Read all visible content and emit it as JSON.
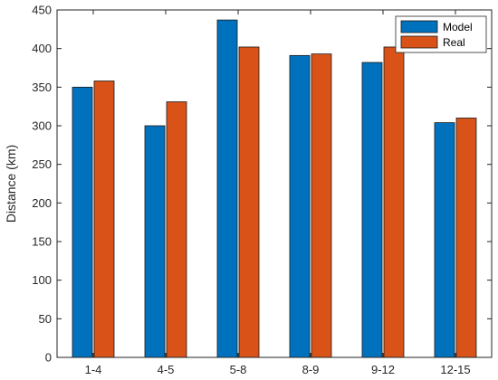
{
  "chart_data": {
    "type": "bar",
    "title": "",
    "xlabel": "",
    "ylabel": "Distance (km)",
    "ylim": [
      0,
      450
    ],
    "yticks": [
      0,
      50,
      100,
      150,
      200,
      250,
      300,
      350,
      400,
      450
    ],
    "categories": [
      "1-4",
      "4-5",
      "5-8",
      "8-9",
      "9-12",
      "12-15"
    ],
    "series": [
      {
        "name": "Model",
        "color": "#0072BD",
        "values": [
          350,
          300,
          437,
          391,
          382,
          304
        ]
      },
      {
        "name": "Real",
        "color": "#D95319",
        "values": [
          358,
          331,
          402,
          393,
          402,
          310
        ]
      }
    ],
    "legend": {
      "position": "top-right"
    },
    "grid": false
  }
}
